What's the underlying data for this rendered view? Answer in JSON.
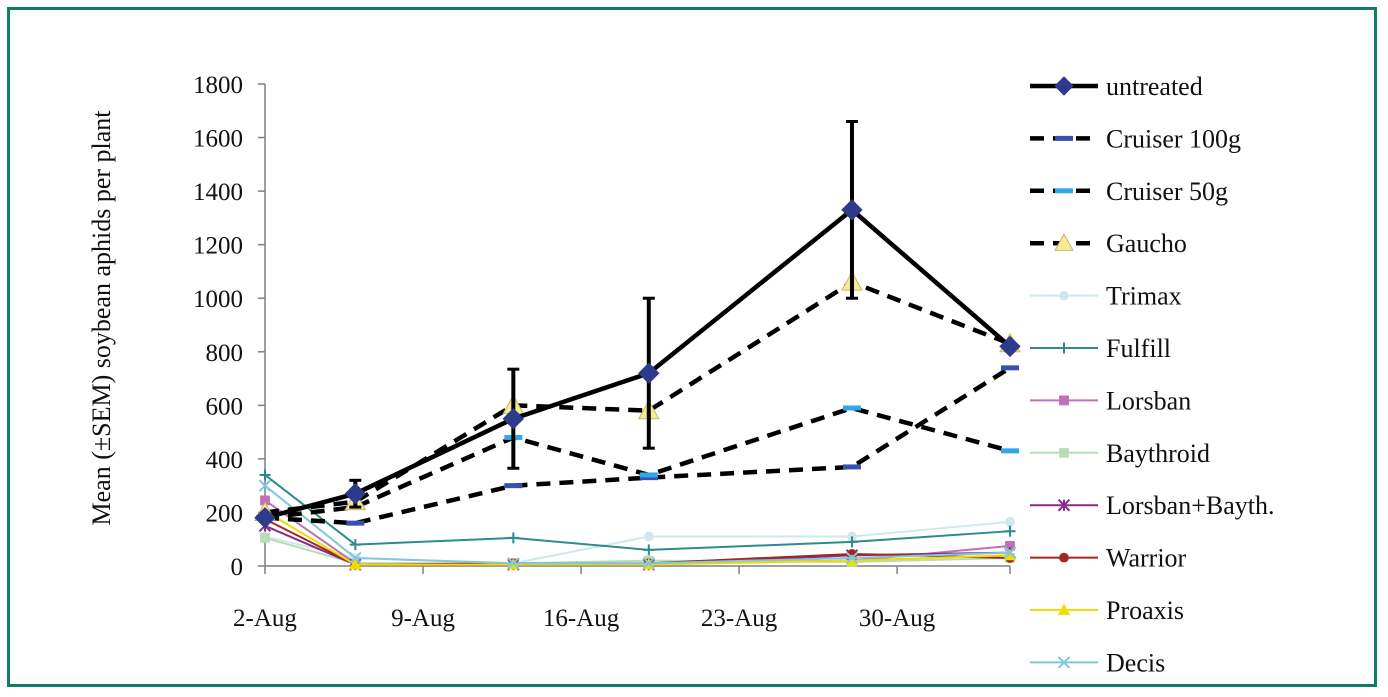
{
  "chart_data": {
    "type": "line",
    "title": "",
    "xlabel": "",
    "ylabel": "Mean (±SEM) soybean aphids per plant",
    "ylim": [
      0,
      1800
    ],
    "yticks": [
      0,
      200,
      400,
      600,
      800,
      1000,
      1200,
      1400,
      1600,
      1800
    ],
    "xlim": [
      "2-Aug",
      "4-Sep"
    ],
    "xticks": [
      "2-Aug",
      "9-Aug",
      "16-Aug",
      "23-Aug",
      "30-Aug"
    ],
    "x": [
      "2-Aug",
      "6-Aug",
      "13-Aug",
      "19-Aug",
      "28-Aug",
      "4-Sep"
    ],
    "grid": false,
    "legend": "right",
    "series": [
      {
        "name": "untreated",
        "values": [
          180,
          270,
          550,
          720,
          1330,
          820
        ],
        "error": [
          0,
          50,
          185,
          280,
          330,
          0
        ],
        "color": "#000000",
        "marker_color": "#2e3a8c",
        "marker": "diamond",
        "style": "solid-thick"
      },
      {
        "name": "Cruiser 100g",
        "values": [
          180,
          160,
          300,
          330,
          370,
          740
        ],
        "color": "#000000",
        "marker_color": "#3a50b0",
        "marker": "dash",
        "style": "dashed"
      },
      {
        "name": "Cruiser 50g",
        "values": [
          180,
          220,
          480,
          340,
          590,
          430
        ],
        "color": "#000000",
        "marker_color": "#2ea8e8",
        "marker": "dash",
        "style": "dashed"
      },
      {
        "name": "Gaucho",
        "values": [
          200,
          240,
          600,
          580,
          1060,
          830
        ],
        "color": "#000000",
        "marker_color": "#f5ec9a",
        "marker": "triangle",
        "style": "dashed"
      },
      {
        "name": "Trimax",
        "values": [
          110,
          30,
          10,
          110,
          110,
          165
        ],
        "color": "#cfe8ee",
        "marker": "circle",
        "style": "thin"
      },
      {
        "name": "Fulfill",
        "values": [
          340,
          80,
          105,
          60,
          90,
          130
        ],
        "color": "#2e8b8b",
        "marker": "plus",
        "style": "thin"
      },
      {
        "name": "Lorsban",
        "values": [
          245,
          10,
          10,
          10,
          20,
          75
        ],
        "color": "#c070b8",
        "marker": "square",
        "style": "thin"
      },
      {
        "name": "Baythroid",
        "values": [
          105,
          10,
          10,
          20,
          15,
          30
        ],
        "color": "#b8dcb8",
        "marker": "square",
        "style": "thin"
      },
      {
        "name": "Lorsban+Bayth.",
        "values": [
          150,
          5,
          5,
          5,
          40,
          50
        ],
        "color": "#8a2a8a",
        "marker": "star",
        "style": "thin"
      },
      {
        "name": "Warrior",
        "values": [
          175,
          5,
          10,
          10,
          45,
          30
        ],
        "color": "#a02820",
        "marker": "circle",
        "style": "thin"
      },
      {
        "name": "Proaxis",
        "values": [
          205,
          5,
          5,
          5,
          20,
          40
        ],
        "color": "#f0dc00",
        "marker": "triangle",
        "style": "thin"
      },
      {
        "name": "Decis",
        "values": [
          300,
          30,
          10,
          10,
          30,
          50
        ],
        "color": "#7ec8e0",
        "marker": "x",
        "style": "thin"
      }
    ]
  }
}
